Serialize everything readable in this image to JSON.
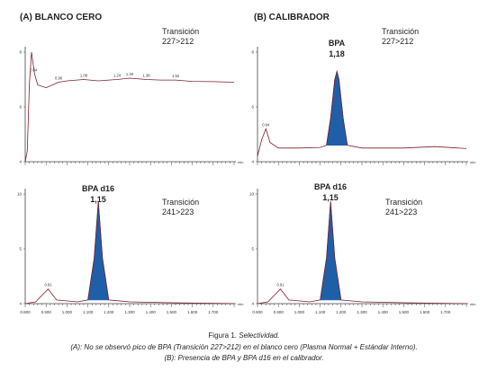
{
  "headers": {
    "left": "(A) BLANCO CERO",
    "right": "(B) CALIBRADOR"
  },
  "transitions": {
    "t1": {
      "label": "Transición",
      "value": "227>212"
    },
    "t2": {
      "label": "Transición",
      "value": "241>223"
    }
  },
  "peaks": {
    "bpa": {
      "name": "BPA",
      "rt": "1,18"
    },
    "bpad16": {
      "name": "BPA d16",
      "rt": "1,15"
    }
  },
  "caption": {
    "title_prefix": "Figura 1. ",
    "title_emph": "Selectividad.",
    "line_a": "(A): No se observó pico de BPA (Transición 227>212) en el blanco cero (Plasma Normal + Estándar Interno).",
    "line_b": "(B): Presencia de BPA y BPA d16 en el calibrador."
  },
  "chart_data": [
    {
      "type": "line",
      "panel": "top-left",
      "xlim": [
        0.8,
        1.8
      ],
      "ylim": [
        4,
        8
      ],
      "peak_annotations": [
        "0.84",
        "0.96",
        "1.08",
        "1.24",
        "1.30",
        "1.38",
        "1.52"
      ],
      "series": [
        {
          "values": [
            [
              0.8,
              4.0
            ],
            [
              0.81,
              4.4
            ],
            [
              0.82,
              6.8
            ],
            [
              0.83,
              8.0
            ],
            [
              0.845,
              7.2
            ],
            [
              0.86,
              6.8
            ],
            [
              0.9,
              6.7
            ],
            [
              0.96,
              6.9
            ],
            [
              1.0,
              6.95
            ],
            [
              1.08,
              7.0
            ],
            [
              1.15,
              6.95
            ],
            [
              1.24,
              7.0
            ],
            [
              1.3,
              7.05
            ],
            [
              1.38,
              7.0
            ],
            [
              1.45,
              6.98
            ],
            [
              1.52,
              6.98
            ],
            [
              1.6,
              6.93
            ],
            [
              1.7,
              6.92
            ],
            [
              1.8,
              6.9
            ]
          ]
        }
      ]
    },
    {
      "type": "line",
      "panel": "top-right",
      "xlim": [
        0.8,
        1.8
      ],
      "ylim": [
        4,
        8
      ],
      "peak_annotations": [
        "0.84",
        "1.18"
      ],
      "series": [
        {
          "values": [
            [
              0.8,
              4.2
            ],
            [
              0.82,
              4.8
            ],
            [
              0.84,
              5.2
            ],
            [
              0.86,
              4.7
            ],
            [
              0.9,
              4.5
            ],
            [
              1.0,
              4.5
            ],
            [
              1.1,
              4.52
            ],
            [
              1.13,
              4.6
            ],
            [
              1.15,
              5.6
            ],
            [
              1.17,
              7.0
            ],
            [
              1.18,
              7.3
            ],
            [
              1.19,
              7.0
            ],
            [
              1.21,
              5.6
            ],
            [
              1.23,
              4.6
            ],
            [
              1.3,
              4.5
            ],
            [
              1.5,
              4.5
            ],
            [
              1.65,
              4.55
            ],
            [
              1.8,
              4.48
            ]
          ]
        }
      ]
    },
    {
      "type": "line",
      "panel": "bottom-left",
      "xlim": [
        0.8,
        1.8
      ],
      "ylim": [
        4,
        10
      ],
      "peak_annotations": [
        "0.91"
      ],
      "series": [
        {
          "values": [
            [
              0.8,
              4.0
            ],
            [
              0.85,
              4.1
            ],
            [
              0.91,
              4.8
            ],
            [
              0.95,
              4.2
            ],
            [
              1.05,
              4.1
            ],
            [
              1.1,
              4.2
            ],
            [
              1.13,
              6.5
            ],
            [
              1.15,
              9.6
            ],
            [
              1.17,
              6.5
            ],
            [
              1.2,
              4.2
            ],
            [
              1.3,
              4.1
            ],
            [
              1.5,
              4.05
            ],
            [
              1.8,
              4.0
            ]
          ]
        }
      ]
    },
    {
      "type": "line",
      "panel": "bottom-right",
      "xlim": [
        0.8,
        1.8
      ],
      "ylim": [
        4,
        10
      ],
      "peak_annotations": [
        "0.91"
      ],
      "series": [
        {
          "values": [
            [
              0.8,
              4.0
            ],
            [
              0.85,
              4.1
            ],
            [
              0.91,
              4.8
            ],
            [
              0.95,
              4.2
            ],
            [
              1.05,
              4.1
            ],
            [
              1.1,
              4.2
            ],
            [
              1.13,
              6.5
            ],
            [
              1.15,
              9.6
            ],
            [
              1.17,
              6.5
            ],
            [
              1.2,
              4.2
            ],
            [
              1.3,
              4.1
            ],
            [
              1.5,
              4.05
            ],
            [
              1.8,
              4.0
            ]
          ]
        }
      ]
    }
  ],
  "axis_ticks_x": [
    "0.800",
    "0.900",
    "1.000",
    "1.100",
    "1.200",
    "1.300",
    "1.400",
    "1.500",
    "1.600",
    "1.700"
  ]
}
